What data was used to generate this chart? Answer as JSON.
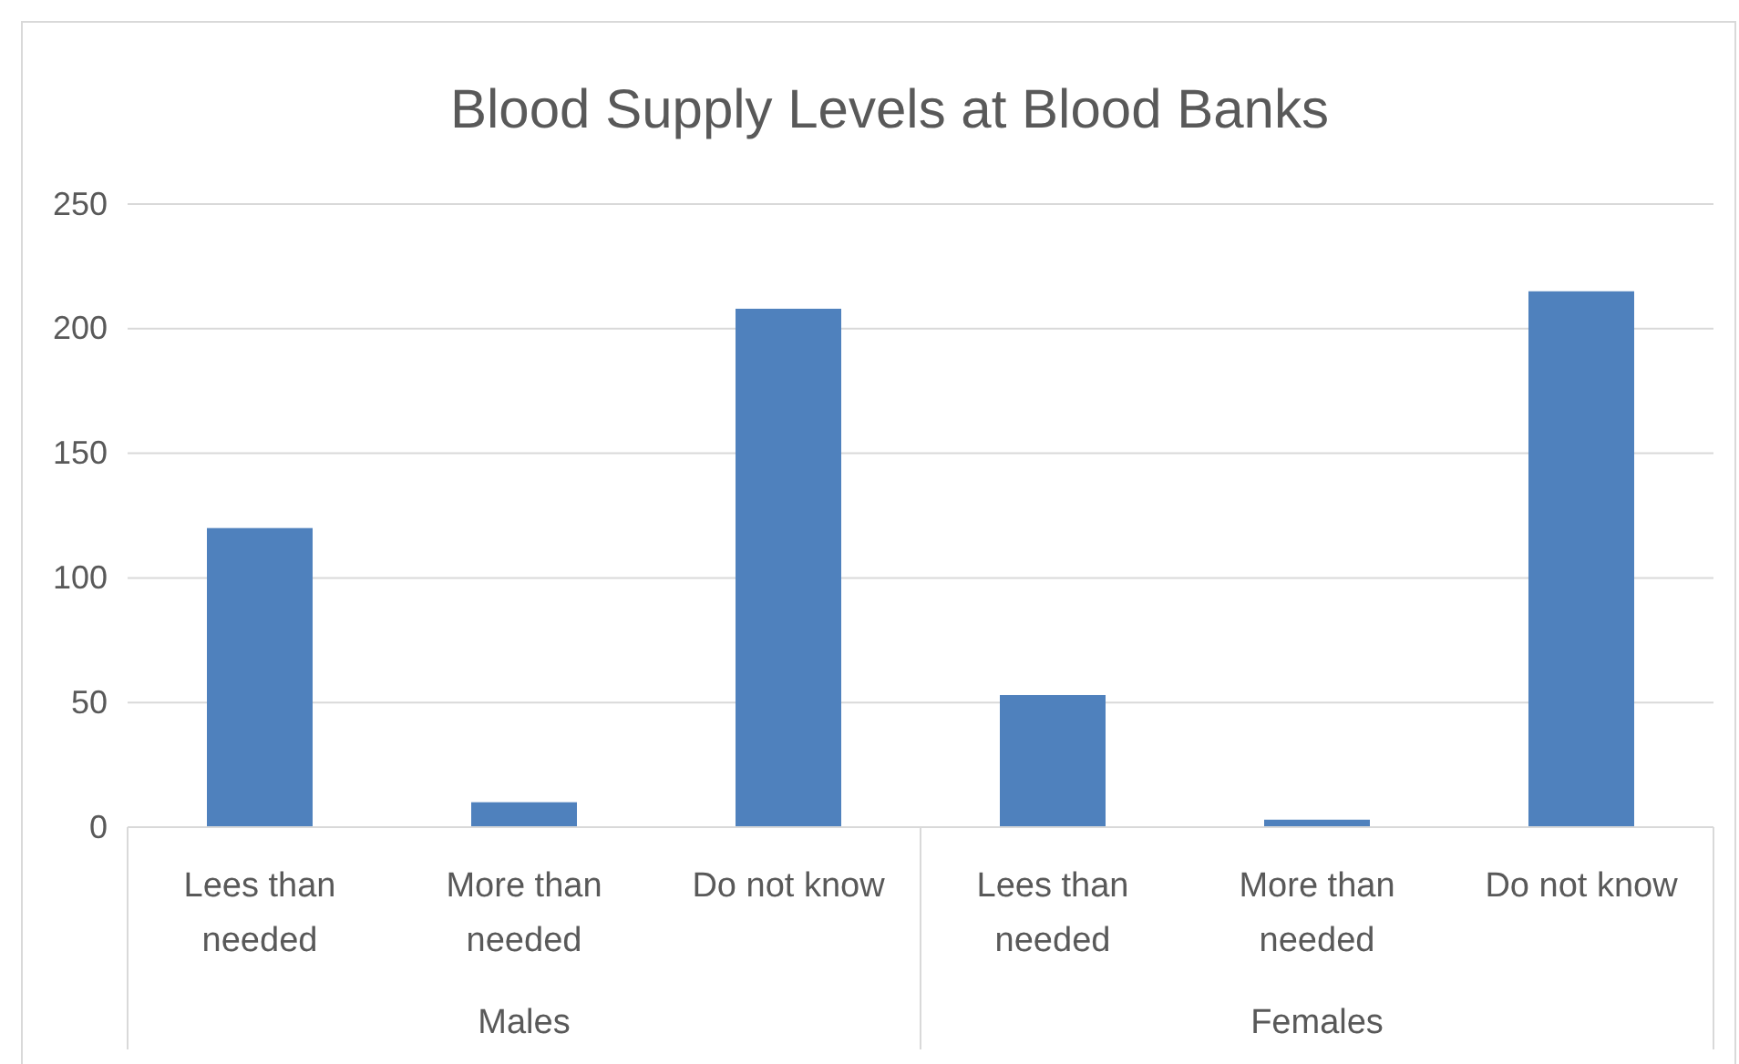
{
  "chart_data": {
    "type": "bar",
    "title": "Blood Supply Levels at Blood Banks",
    "categories": [
      "Lees than needed",
      "More than needed",
      "Do not know",
      "Lees than needed",
      "More than needed",
      "Do not know"
    ],
    "values": [
      120,
      10,
      208,
      53,
      3,
      215
    ],
    "color": "#4f81bd",
    "ylim": [
      0,
      250
    ],
    "yticks": [
      0,
      50,
      100,
      150,
      200,
      250
    ],
    "grid": "y",
    "annotations": [
      "Males",
      "Females"
    ]
  }
}
